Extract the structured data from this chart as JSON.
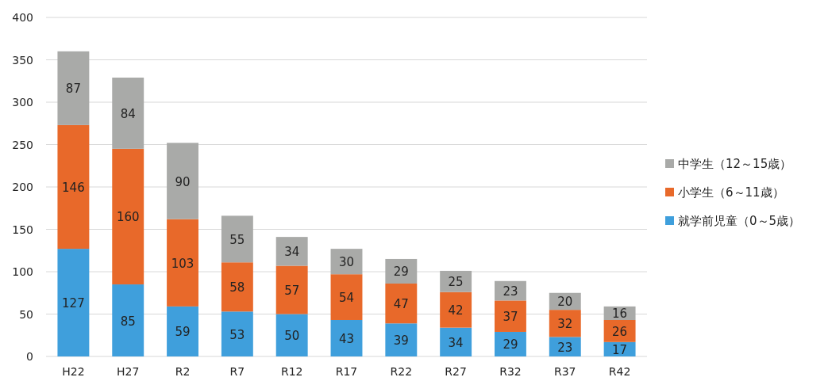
{
  "chart_data": {
    "type": "bar",
    "stacked": true,
    "data_labels": true,
    "grid": "y",
    "legend": "right",
    "categories": [
      "H22",
      "H27",
      "R2",
      "R7",
      "R12",
      "R17",
      "R22",
      "R27",
      "R32",
      "R37",
      "R42"
    ],
    "ylim": [
      0,
      400
    ],
    "yticks": [
      0,
      50,
      100,
      150,
      200,
      250,
      300,
      350,
      400
    ],
    "series": [
      {
        "name": "就学前児童（0～5歳）",
        "color": "#3f9fdc",
        "values": [
          127,
          85,
          59,
          53,
          50,
          43,
          39,
          34,
          29,
          23,
          17
        ]
      },
      {
        "name": "小学生（6～11歳）",
        "color": "#e8692a",
        "values": [
          146,
          160,
          103,
          58,
          57,
          54,
          47,
          42,
          37,
          32,
          26
        ]
      },
      {
        "name": "中学生（12～15歳）",
        "color": "#a9aaa8",
        "values": [
          87,
          84,
          90,
          55,
          34,
          30,
          29,
          25,
          23,
          20,
          16
        ]
      }
    ]
  }
}
